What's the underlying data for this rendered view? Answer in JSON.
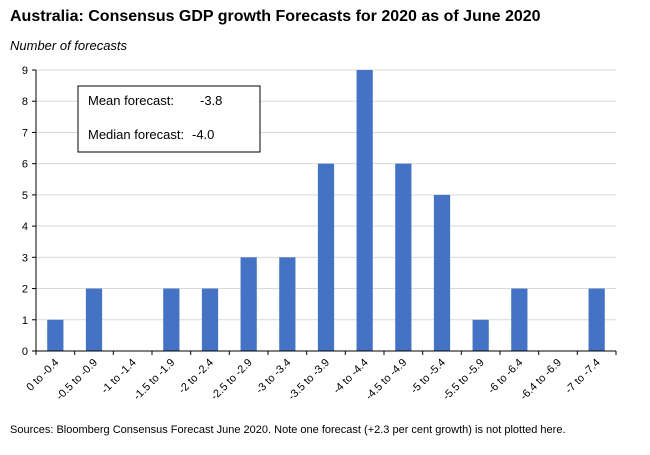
{
  "chart_data": {
    "type": "bar",
    "title": "Australia: Consensus GDP growth Forecasts for 2020 as of June 2020",
    "ylabel": "Number of forecasts",
    "xlabel": "",
    "ylim": [
      0,
      9
    ],
    "yticks": [
      0,
      1,
      2,
      3,
      4,
      5,
      6,
      7,
      8,
      9
    ],
    "grid": true,
    "categories": [
      "0 to -0.4",
      "-0.5 to -0.9",
      "-1 to -1.4",
      "-1.5 to -1.9",
      "-2 to -2.4",
      "-2.5 to -2.9",
      "-3 to -3.4",
      "-3.5 to -3.9",
      "-4 to -4.4",
      "-4.5 to -4.9",
      "-5 to -5.4",
      "-5.5 to -5.9",
      "-6 to -6.4",
      "-6.4 to -6.9",
      "-7 to -7.4"
    ],
    "values": [
      1,
      2,
      0,
      2,
      2,
      3,
      3,
      6,
      9,
      6,
      5,
      1,
      2,
      0,
      2
    ],
    "bar_color": "#4472C4",
    "annotation": {
      "mean_label": "Mean forecast:",
      "mean_value": "-3.8",
      "median_label": "Median forecast:",
      "median_value": "-4.0"
    }
  },
  "footnote": "Sources: Bloomberg Consensus Forecast June 2020.  Note one forecast (+2.3 per cent growth) is not plotted here."
}
